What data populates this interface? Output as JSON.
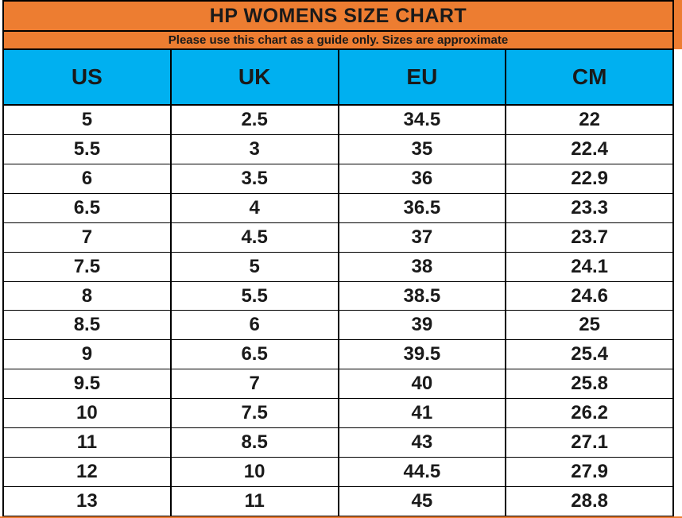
{
  "title": "HP WOMENS SIZE CHART",
  "subtitle": "Please use this chart as a guide only. Sizes are approximate",
  "colors": {
    "title_band_orange": "#ED7D31",
    "header_row_blue": "#00B0F0",
    "gridline_black": "#000000",
    "data_row_white": "#FFFFFF",
    "text_black": "#1A1A1A"
  },
  "chart_data": {
    "type": "table",
    "title": "HP WOMENS SIZE CHART",
    "subtitle": "Please use this chart as a guide only. Sizes are approximate",
    "columns": [
      "US",
      "UK",
      "EU",
      "CM"
    ],
    "rows": [
      [
        "5",
        "2.5",
        "34.5",
        "22"
      ],
      [
        "5.5",
        "3",
        "35",
        "22.4"
      ],
      [
        "6",
        "3.5",
        "36",
        "22.9"
      ],
      [
        "6.5",
        "4",
        "36.5",
        "23.3"
      ],
      [
        "7",
        "4.5",
        "37",
        "23.7"
      ],
      [
        "7.5",
        "5",
        "38",
        "24.1"
      ],
      [
        "8",
        "5.5",
        "38.5",
        "24.6"
      ],
      [
        "8.5",
        "6",
        "39",
        "25"
      ],
      [
        "9",
        "6.5",
        "39.5",
        "25.4"
      ],
      [
        "9.5",
        "7",
        "40",
        "25.8"
      ],
      [
        "10",
        "7.5",
        "41",
        "26.2"
      ],
      [
        "11",
        "8.5",
        "43",
        "27.1"
      ],
      [
        "12",
        "10",
        "44.5",
        "27.9"
      ],
      [
        "13",
        "11",
        "45",
        "28.8"
      ]
    ],
    "layout": {
      "title_rows_merged_full_width": true,
      "grid": "on",
      "column_alignment": "center"
    }
  }
}
